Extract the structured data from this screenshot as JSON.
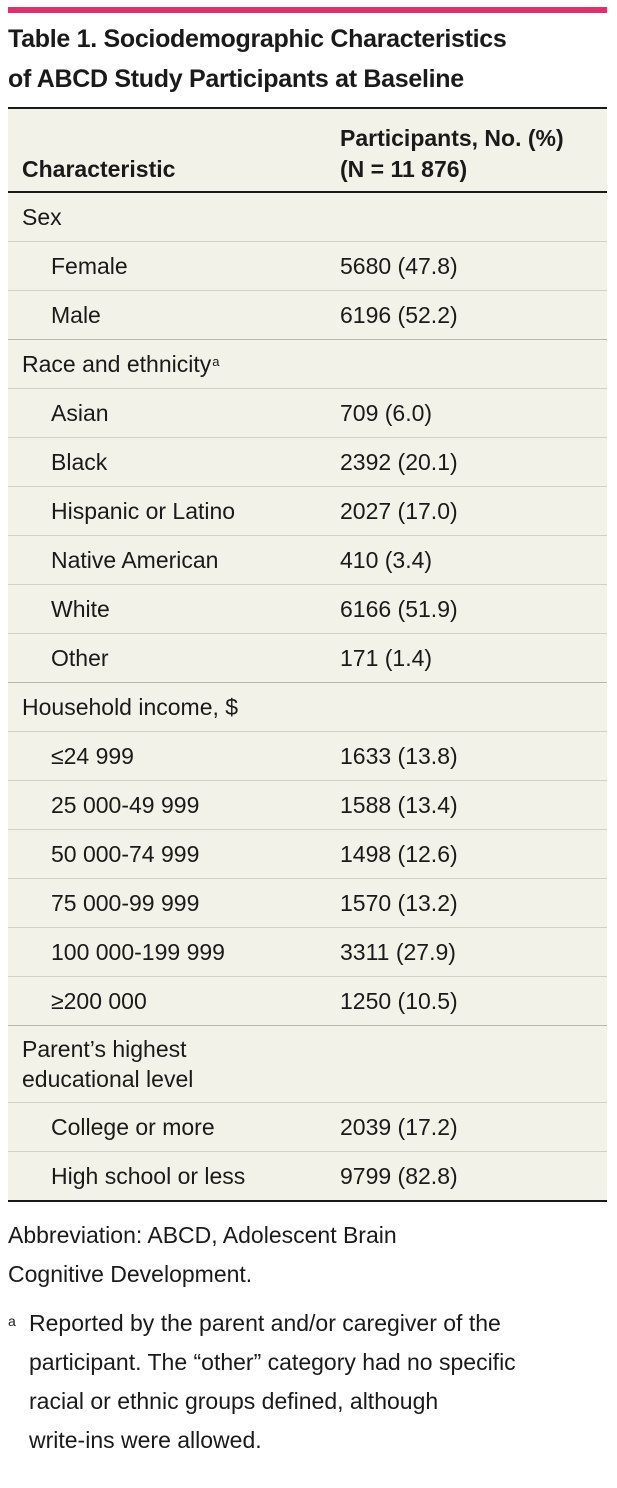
{
  "accent_color": "#e0306a",
  "table_bg_color": "#f3f2e8",
  "title": {
    "line1": "Table 1. Sociodemographic Characteristics",
    "line2": "of ABCD Study Participants at Baseline"
  },
  "header": {
    "characteristic": "Characteristic",
    "participants_line1": "Participants, No. (%)",
    "participants_line2": "(N = 11 876)"
  },
  "groups": [
    {
      "label": "Sex",
      "rows": [
        {
          "label": "Female",
          "value": "5680 (47.8)"
        },
        {
          "label": "Male",
          "value": "6196 (52.2)"
        }
      ]
    },
    {
      "label": "Race and ethnicity",
      "footnote_marker": "a",
      "rows": [
        {
          "label": "Asian",
          "value": "709 (6.0)"
        },
        {
          "label": "Black",
          "value": "2392 (20.1)"
        },
        {
          "label": "Hispanic or Latino",
          "value": "2027 (17.0)"
        },
        {
          "label": "Native American",
          "value": "410 (3.4)"
        },
        {
          "label": "White",
          "value": "6166 (51.9)"
        },
        {
          "label": "Other",
          "value": "171 (1.4)"
        }
      ]
    },
    {
      "label": "Household income, $",
      "rows": [
        {
          "label": "≤24 999",
          "value": "1633 (13.8)"
        },
        {
          "label": "25 000-49 999",
          "value": "1588 (13.4)"
        },
        {
          "label": "50 000-74 999",
          "value": "1498 (12.6)"
        },
        {
          "label": "75 000-99 999",
          "value": "1570 (13.2)"
        },
        {
          "label": "100 000-199 999",
          "value": "3311 (27.9)"
        },
        {
          "label": "≥200 000",
          "value": "1250 (10.5)"
        }
      ]
    },
    {
      "label_line1": "Parent’s highest",
      "label_line2": "educational level",
      "rows": [
        {
          "label": "College or more",
          "value": "2039 (17.2)"
        },
        {
          "label": "High school or less",
          "value": "9799 (82.8)"
        }
      ]
    }
  ],
  "notes": {
    "abbreviation_line1": "Abbreviation: ABCD, Adolescent Brain",
    "abbreviation_line2": "Cognitive Development.",
    "footnote_marker": "a",
    "footnote_line1": "Reported by the parent and/or caregiver of the",
    "footnote_line2": "participant. The “other” category had no specific",
    "footnote_line3": "racial or ethnic groups defined, although",
    "footnote_line4": "write-ins were allowed."
  }
}
